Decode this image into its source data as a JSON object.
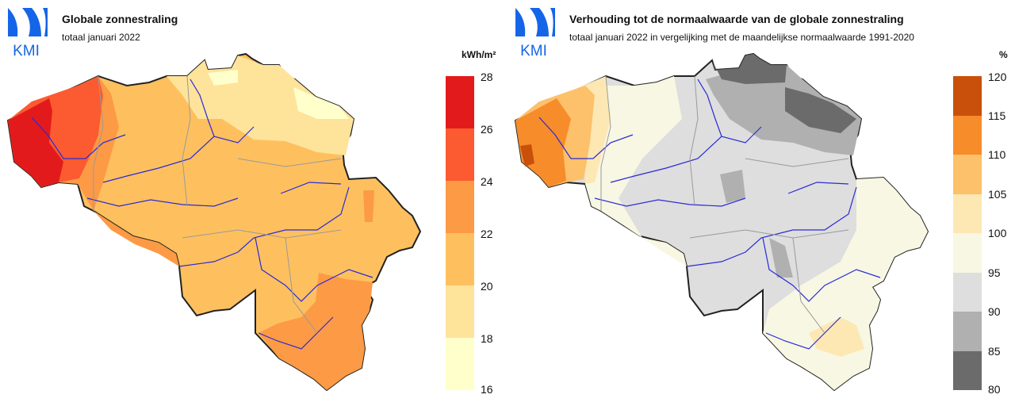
{
  "panels": [
    {
      "id": "global-radiation",
      "logo_text": "KMI",
      "title": "Globale zonnestraling",
      "subtitle": "totaal januari 2022",
      "legend": {
        "unit": "kWh/m²",
        "ticks": [
          "28",
          "26",
          "24",
          "22",
          "20",
          "18",
          "16"
        ],
        "colors": [
          "#e31a1c",
          "#fc5a30",
          "#fd9a45",
          "#fec05e",
          "#fee39b",
          "#ffffcc"
        ]
      }
    },
    {
      "id": "radiation-ratio",
      "logo_text": "KMI",
      "title": "Verhouding tot de normaalwaarde van de globale zonnestraling",
      "subtitle": "totaal januari 2022 in vergelijking met de maandelijkse normaalwaarde 1991-2020",
      "legend": {
        "unit": "%",
        "ticks": [
          "120",
          "115",
          "110",
          "105",
          "100",
          "95",
          "90",
          "85",
          "80"
        ],
        "colors": [
          "#c9500a",
          "#f68c2a",
          "#fdc06b",
          "#fde8b4",
          "#f7f7e3",
          "#dedede",
          "#b0b0b0",
          "#6b6b6b"
        ]
      }
    }
  ]
}
